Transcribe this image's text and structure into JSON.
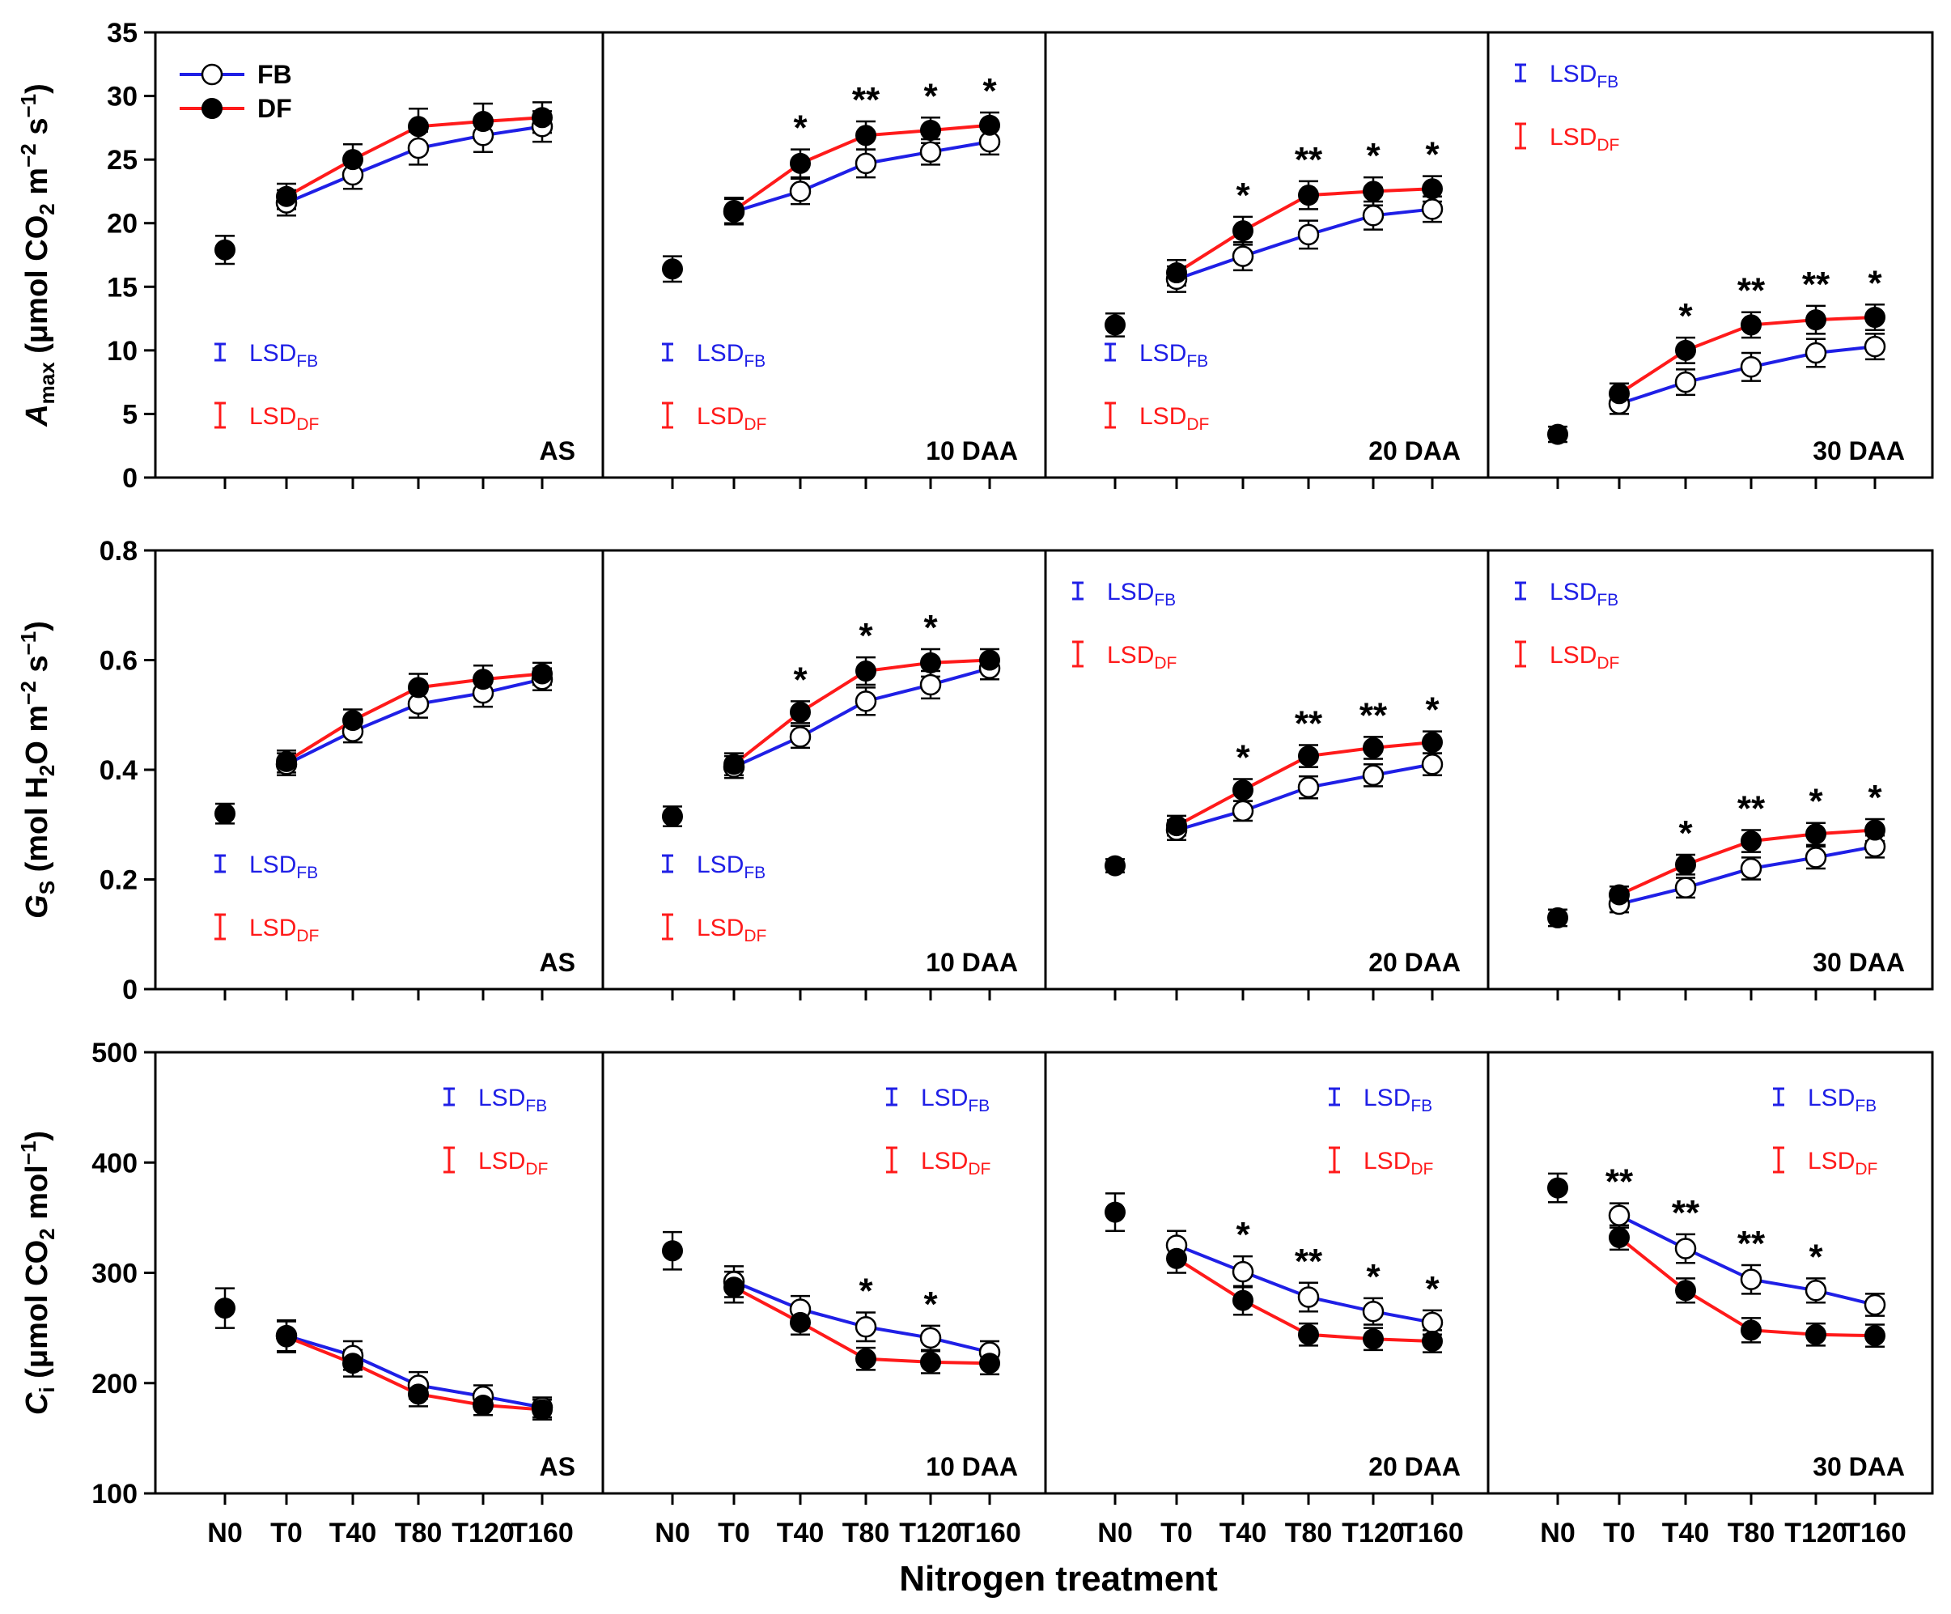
{
  "figure": {
    "xlabel": "Nitrogen treatment",
    "categories": [
      "N0",
      "T0",
      "T40",
      "T80",
      "T120",
      "T160"
    ],
    "legend": {
      "fb": "FB",
      "df": "DF"
    },
    "lsd_main": "LSD",
    "lsd_fb_sub": "FB",
    "lsd_df_sub": "DF",
    "colors": {
      "fb": "#1f1fe6",
      "df": "#ff1a1a",
      "axis": "#000000",
      "text": "#000000"
    }
  },
  "chart_data": [
    {
      "type": "line",
      "row": 0,
      "ylabel": {
        "sym": "A",
        "sub": "max",
        "pre": " (μmol  CO",
        "sub2": "2",
        "mid": " m",
        "sup1": "−2",
        "mid2": " s",
        "sup2": "−1",
        "post": ")"
      },
      "ylim": [
        0,
        35
      ],
      "yticks": [
        0,
        5,
        10,
        15,
        20,
        25,
        30,
        35
      ],
      "ytick_labels": [
        "0",
        "5",
        "10",
        "15",
        "20",
        "25",
        "30",
        "35"
      ],
      "legend_position": "top-left",
      "panels": [
        {
          "label": "AS",
          "lsd_position": "bottom-left",
          "n0": 17.9,
          "n0_err": 1.1,
          "fb": [
            21.6,
            23.8,
            25.9,
            26.9,
            27.6
          ],
          "fb_err": [
            1.0,
            1.1,
            1.3,
            1.3,
            1.2
          ],
          "df": [
            22.1,
            25.0,
            27.6,
            28.0,
            28.3
          ],
          "df_err": [
            1.0,
            1.2,
            1.4,
            1.4,
            1.2
          ],
          "stars": [
            "",
            "",
            "",
            "",
            ""
          ]
        },
        {
          "label": "10 DAA",
          "lsd_position": "bottom-left",
          "n0": 16.4,
          "n0_err": 1.0,
          "fb": [
            20.9,
            22.5,
            24.7,
            25.6,
            26.4
          ],
          "fb_err": [
            1.0,
            1.0,
            1.1,
            1.0,
            1.0
          ],
          "df": [
            21.0,
            24.7,
            26.9,
            27.3,
            27.7
          ],
          "df_err": [
            1.0,
            1.1,
            1.1,
            1.0,
            1.0
          ],
          "stars": [
            "",
            "*",
            "**",
            "*",
            "*"
          ]
        },
        {
          "label": "20 DAA",
          "lsd_position": "bottom-left",
          "n0": 12.0,
          "n0_err": 0.9,
          "fb": [
            15.6,
            17.4,
            19.1,
            20.6,
            21.1
          ],
          "fb_err": [
            1.0,
            1.1,
            1.1,
            1.1,
            1.0
          ],
          "df": [
            16.1,
            19.4,
            22.2,
            22.5,
            22.7
          ],
          "df_err": [
            1.0,
            1.1,
            1.1,
            1.1,
            1.0
          ],
          "stars": [
            "",
            "*",
            "**",
            "*",
            "*"
          ]
        },
        {
          "label": "30 DAA",
          "lsd_position": "top-left",
          "n0": 3.4,
          "n0_err": 0.6,
          "fb": [
            5.8,
            7.5,
            8.7,
            9.8,
            10.3
          ],
          "fb_err": [
            0.8,
            1.0,
            1.1,
            1.1,
            1.0
          ],
          "df": [
            6.6,
            10.0,
            12.0,
            12.4,
            12.6
          ],
          "df_err": [
            0.8,
            1.0,
            1.0,
            1.1,
            1.0
          ],
          "stars": [
            "",
            "*",
            "**",
            "**",
            "*"
          ]
        }
      ]
    },
    {
      "type": "line",
      "row": 1,
      "ylabel": {
        "sym": "G",
        "sub": "S",
        "pre": " (mol  H",
        "sub2": "2",
        "mid": "O m",
        "sup1": "−2",
        "mid2": " s",
        "sup2": "−1",
        "post": ")"
      },
      "ylim": [
        0,
        0.8
      ],
      "yticks": [
        0,
        0.2,
        0.4,
        0.6,
        0.8
      ],
      "ytick_labels": [
        "0",
        "0.2",
        "0.4",
        "0.6",
        "0.8"
      ],
      "panels": [
        {
          "label": "AS",
          "lsd_position": "bottom-left",
          "n0": 0.32,
          "n0_err": 0.018,
          "fb": [
            0.41,
            0.47,
            0.52,
            0.54,
            0.565
          ],
          "fb_err": [
            0.02,
            0.02,
            0.025,
            0.025,
            0.02
          ],
          "df": [
            0.415,
            0.49,
            0.55,
            0.565,
            0.575
          ],
          "df_err": [
            0.02,
            0.02,
            0.025,
            0.025,
            0.02
          ],
          "stars": [
            "",
            "",
            "",
            "",
            ""
          ]
        },
        {
          "label": "10 DAA",
          "lsd_position": "bottom-left",
          "n0": 0.315,
          "n0_err": 0.018,
          "fb": [
            0.405,
            0.46,
            0.525,
            0.555,
            0.585
          ],
          "fb_err": [
            0.02,
            0.02,
            0.025,
            0.025,
            0.02
          ],
          "df": [
            0.41,
            0.505,
            0.58,
            0.595,
            0.6
          ],
          "df_err": [
            0.02,
            0.02,
            0.025,
            0.025,
            0.02
          ],
          "stars": [
            "",
            "*",
            "*",
            "*",
            ""
          ]
        },
        {
          "label": "20 DAA",
          "lsd_position": "top-left",
          "n0": 0.225,
          "n0_err": 0.012,
          "fb": [
            0.29,
            0.325,
            0.368,
            0.39,
            0.41
          ],
          "fb_err": [
            0.018,
            0.018,
            0.02,
            0.02,
            0.02
          ],
          "df": [
            0.298,
            0.363,
            0.425,
            0.44,
            0.45
          ],
          "df_err": [
            0.018,
            0.02,
            0.02,
            0.02,
            0.02
          ],
          "stars": [
            "",
            "*",
            "**",
            "**",
            "*"
          ]
        },
        {
          "label": "30 DAA",
          "lsd_position": "top-left",
          "n0": 0.13,
          "n0_err": 0.015,
          "fb": [
            0.155,
            0.185,
            0.22,
            0.24,
            0.26
          ],
          "fb_err": [
            0.015,
            0.018,
            0.02,
            0.02,
            0.02
          ],
          "df": [
            0.172,
            0.227,
            0.27,
            0.283,
            0.29
          ],
          "df_err": [
            0.015,
            0.018,
            0.02,
            0.02,
            0.02
          ],
          "stars": [
            "",
            "*",
            "**",
            "*",
            "*"
          ]
        }
      ]
    },
    {
      "type": "line",
      "row": 2,
      "ylabel": {
        "sym": "C",
        "sub": "i",
        "pre": " (μmol  CO",
        "sub2": "2",
        "mid": " mol",
        "sup1": "−1",
        "mid2": "",
        "sup2": "",
        "post": ")"
      },
      "ylim": [
        100,
        500
      ],
      "yticks": [
        100,
        200,
        300,
        400,
        500
      ],
      "ytick_labels": [
        "100",
        "200",
        "300",
        "400",
        "500"
      ],
      "panels": [
        {
          "label": "AS",
          "lsd_position": "top-right",
          "n0": 268,
          "n0_err": 18,
          "fb": [
            243,
            225,
            198,
            188,
            178
          ],
          "fb_err": [
            14,
            13,
            12,
            10,
            9
          ],
          "df": [
            242,
            218,
            190,
            180,
            176
          ],
          "df_err": [
            14,
            12,
            11,
            9,
            9
          ],
          "stars": [
            "",
            "",
            "",
            "",
            ""
          ]
        },
        {
          "label": "10 DAA",
          "lsd_position": "top-right",
          "n0": 320,
          "n0_err": 17,
          "fb": [
            292,
            267,
            251,
            241,
            228
          ],
          "fb_err": [
            14,
            12,
            13,
            11,
            10
          ],
          "df": [
            287,
            255,
            222,
            219,
            218
          ],
          "df_err": [
            14,
            11,
            10,
            10,
            10
          ],
          "stars": [
            "",
            "",
            "*",
            "*",
            ""
          ]
        },
        {
          "label": "20 DAA",
          "lsd_position": "top-right",
          "n0": 355,
          "n0_err": 17,
          "fb": [
            325,
            301,
            278,
            265,
            255
          ],
          "fb_err": [
            13,
            14,
            13,
            12,
            11
          ],
          "df": [
            313,
            275,
            244,
            240,
            238
          ],
          "df_err": [
            13,
            13,
            10,
            10,
            10
          ],
          "stars": [
            "",
            "*",
            "**",
            "*",
            "*"
          ]
        },
        {
          "label": "30 DAA",
          "lsd_position": "top-right",
          "n0": 377,
          "n0_err": 13,
          "fb": [
            352,
            322,
            294,
            284,
            271
          ],
          "fb_err": [
            11,
            13,
            13,
            11,
            10
          ],
          "df": [
            332,
            284,
            248,
            244,
            243
          ],
          "df_err": [
            11,
            11,
            11,
            10,
            10
          ],
          "stars": [
            "**",
            "**",
            "**",
            "*",
            ""
          ]
        }
      ]
    }
  ]
}
